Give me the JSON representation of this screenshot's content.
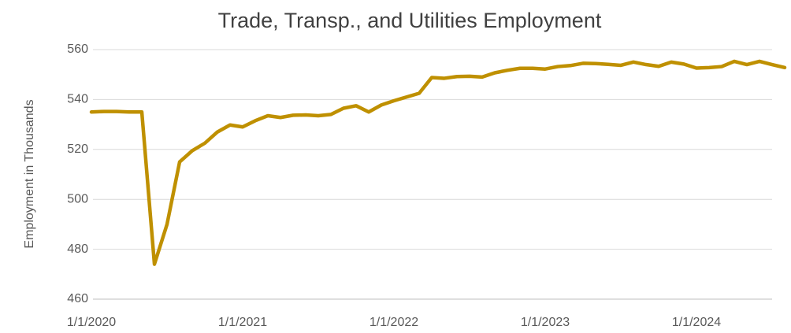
{
  "chart_data": {
    "type": "line",
    "title": "Trade, Transp., and Utilities Employment",
    "y_label": "Employment in Thousands",
    "categories": [
      "1/1/2020",
      null,
      null,
      null,
      null,
      null,
      null,
      null,
      null,
      null,
      null,
      null,
      "1/1/2021",
      null,
      null,
      null,
      null,
      null,
      null,
      null,
      null,
      null,
      null,
      null,
      "1/1/2022",
      null,
      null,
      null,
      null,
      null,
      null,
      null,
      null,
      null,
      null,
      null,
      "1/1/2023",
      null,
      null,
      null,
      null,
      null,
      null,
      null,
      null,
      null,
      null,
      null,
      "1/1/2024",
      null,
      null,
      null,
      null,
      null,
      null,
      null
    ],
    "series": [
      {
        "name": "Employment",
        "color": "#bf9000",
        "values": [
          535,
          535.2,
          535.2,
          535,
          535,
          474,
          490,
          515,
          519.5,
          522.5,
          527,
          529.8,
          529,
          531.5,
          533.5,
          532.8,
          533.7,
          533.8,
          533.5,
          534,
          536.5,
          537.5,
          535,
          537.8,
          539.5,
          541,
          542.5,
          548.8,
          548.5,
          549.2,
          549.3,
          549,
          550.7,
          551.7,
          552.5,
          552.5,
          552.2,
          553.2,
          553.6,
          554.5,
          554.4,
          554.1,
          553.7,
          555,
          554,
          553.3,
          555,
          554.2,
          552.6,
          552.8,
          553.2,
          555.3,
          554,
          555.3,
          554,
          552.8
        ]
      }
    ],
    "ylim": [
      460,
      560
    ],
    "yticks": [
      460,
      480,
      500,
      520,
      540,
      560
    ],
    "grid": true
  }
}
